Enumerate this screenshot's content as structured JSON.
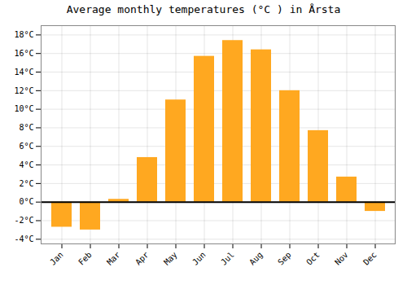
{
  "chart_data": {
    "type": "bar",
    "title": "Average monthly temperatures (°C ) in Årsta",
    "categories": [
      "Jan",
      "Feb",
      "Mar",
      "Apr",
      "May",
      "Jun",
      "Jul",
      "Aug",
      "Sep",
      "Oct",
      "Nov",
      "Dec"
    ],
    "values": [
      -2.7,
      -3.0,
      0.3,
      4.8,
      11.0,
      15.7,
      17.4,
      16.4,
      12.0,
      7.7,
      2.7,
      -1.0
    ],
    "color": "#FFA820",
    "ylim": [
      -4.5,
      19
    ],
    "yticks": [
      {
        "value": -4,
        "label": "-4°C"
      },
      {
        "value": -2,
        "label": "-2°C"
      },
      {
        "value": 0,
        "label": "0°C"
      },
      {
        "value": 2,
        "label": "2°C"
      },
      {
        "value": 4,
        "label": "4°C"
      },
      {
        "value": 6,
        "label": "6°C"
      },
      {
        "value": 8,
        "label": "8°C"
      },
      {
        "value": 10,
        "label": "10°C"
      },
      {
        "value": 12,
        "label": "12°C"
      },
      {
        "value": 14,
        "label": "14°C"
      },
      {
        "value": 16,
        "label": "16°C"
      },
      {
        "value": 18,
        "label": "18°C"
      }
    ],
    "grid": true
  }
}
